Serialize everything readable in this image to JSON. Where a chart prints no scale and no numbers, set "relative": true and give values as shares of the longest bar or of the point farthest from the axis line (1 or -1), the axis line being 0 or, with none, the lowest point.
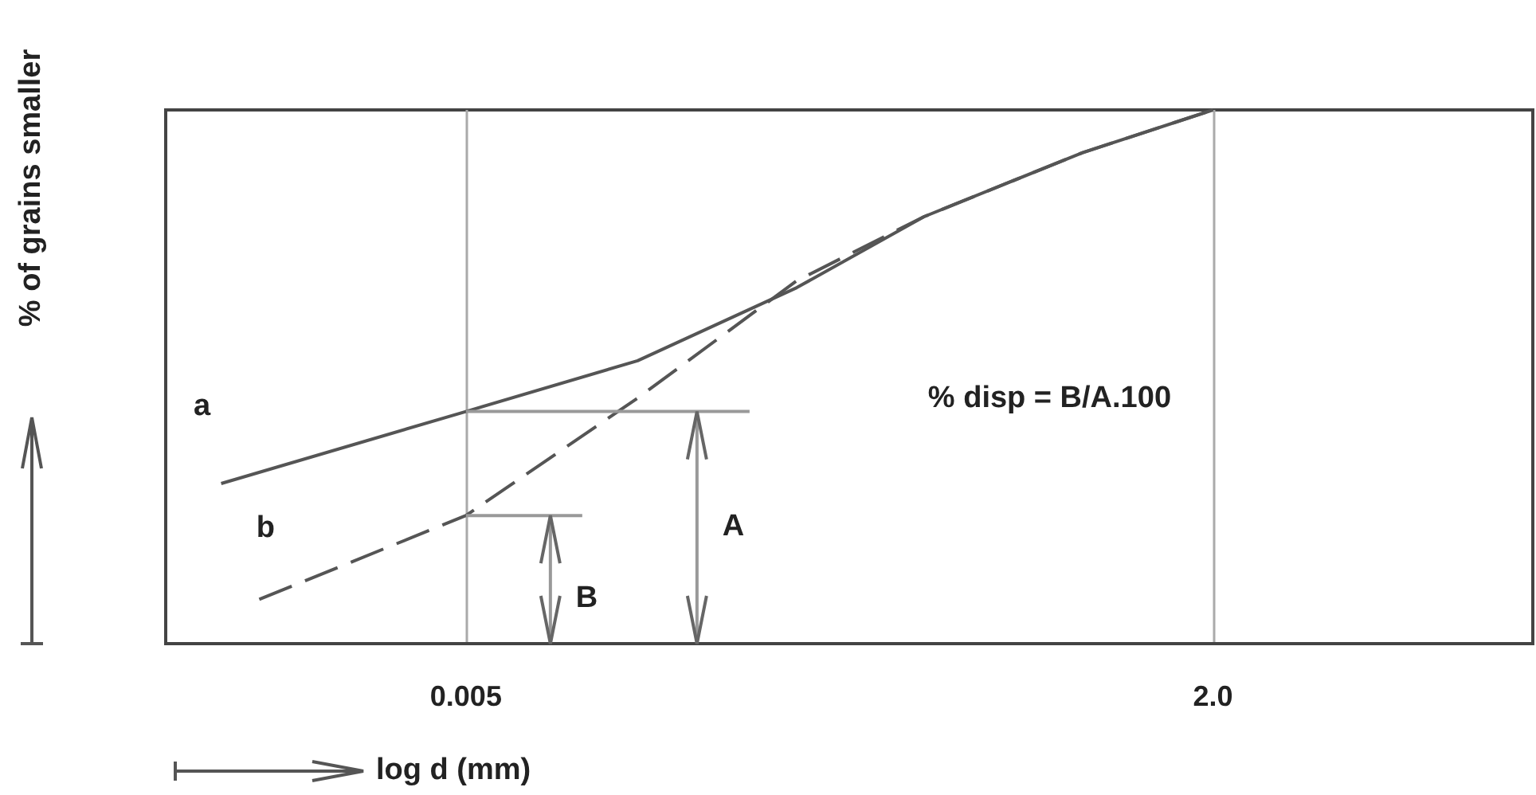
{
  "chart_data": {
    "type": "line",
    "relative": true,
    "xlabel": "log d (mm)",
    "ylabel": "% of grains smaller",
    "log": "x",
    "xlim": [
      0.00045,
      26
    ],
    "xticks": [
      0.005,
      {
        "value": 2,
        "label": "2.0"
      }
    ],
    "grid": "x",
    "legend": false,
    "marker": "none",
    "annotations": [
      "A",
      "B",
      "% disp = B/A.100"
    ],
    "series": [
      {
        "name": "a",
        "color": "#555555",
        "line_style": "solid",
        "x": [
          0.000702,
          0.005,
          0.0198,
          0.071,
          0.197,
          0.703,
          2
        ],
        "values": [
          0.3,
          0.435,
          0.53,
          0.667,
          0.8,
          0.92,
          1
        ]
      },
      {
        "name": "b",
        "color": "#555555",
        "line_style": "dashed",
        "x": [
          0.000953,
          0.005,
          0.0198,
          0.071,
          0.197,
          0.703,
          2
        ],
        "values": [
          0.083,
          0.24,
          0.46,
          0.68,
          0.8,
          0.92,
          1
        ]
      }
    ]
  }
}
